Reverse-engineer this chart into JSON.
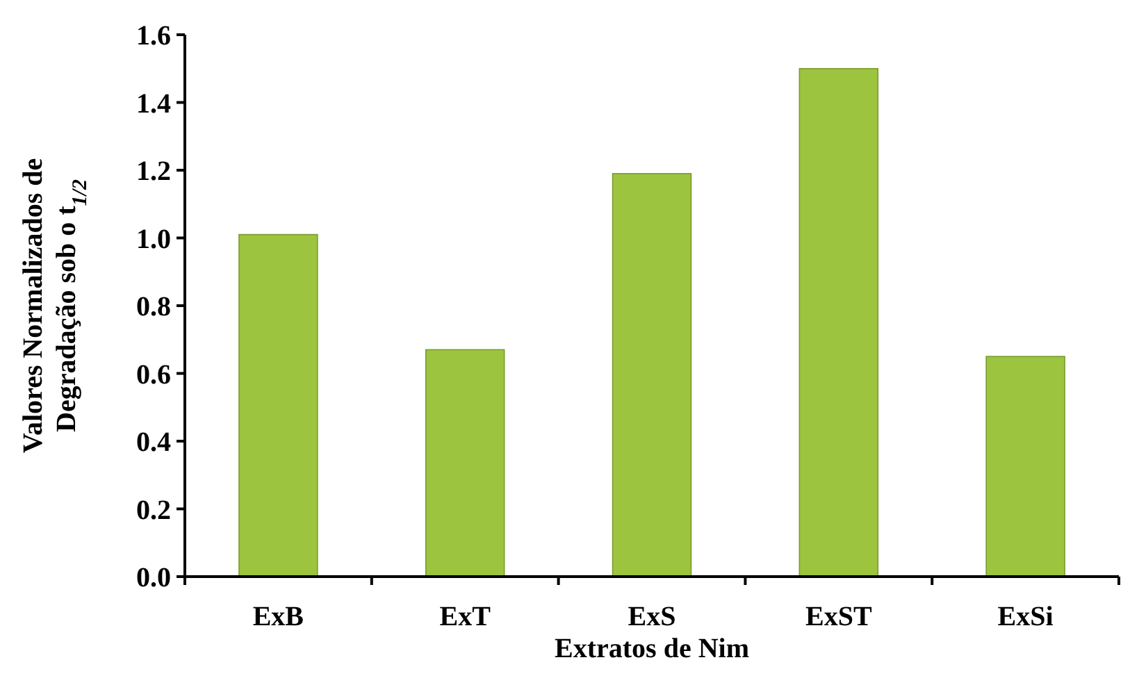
{
  "chart_data": {
    "type": "bar",
    "xlabel": "Extratos de Nim",
    "ylabel": "Valores Normalizados de Degradação sob o t$_{1/2}$",
    "categories": [
      "ExB",
      "ExT",
      "ExS",
      "ExST",
      "ExSi"
    ],
    "values": [
      1.01,
      0.67,
      1.19,
      1.5,
      0.65
    ],
    "color": "#9cc43e",
    "ylim": [
      0,
      1.6
    ],
    "yticks": [
      {
        "value": 0,
        "label": "0.0"
      },
      {
        "value": 0.2,
        "label": "0.2"
      },
      {
        "value": 0.4,
        "label": "0.4"
      },
      {
        "value": 0.6,
        "label": "0.6"
      },
      {
        "value": 0.8,
        "label": "0.8"
      },
      {
        "value": 1,
        "label": "1.0"
      },
      {
        "value": 1.2,
        "label": "1.2"
      },
      {
        "value": 1.4,
        "label": "1.4"
      },
      {
        "value": 1.6,
        "label": "1.6"
      }
    ],
    "grid": false
  }
}
